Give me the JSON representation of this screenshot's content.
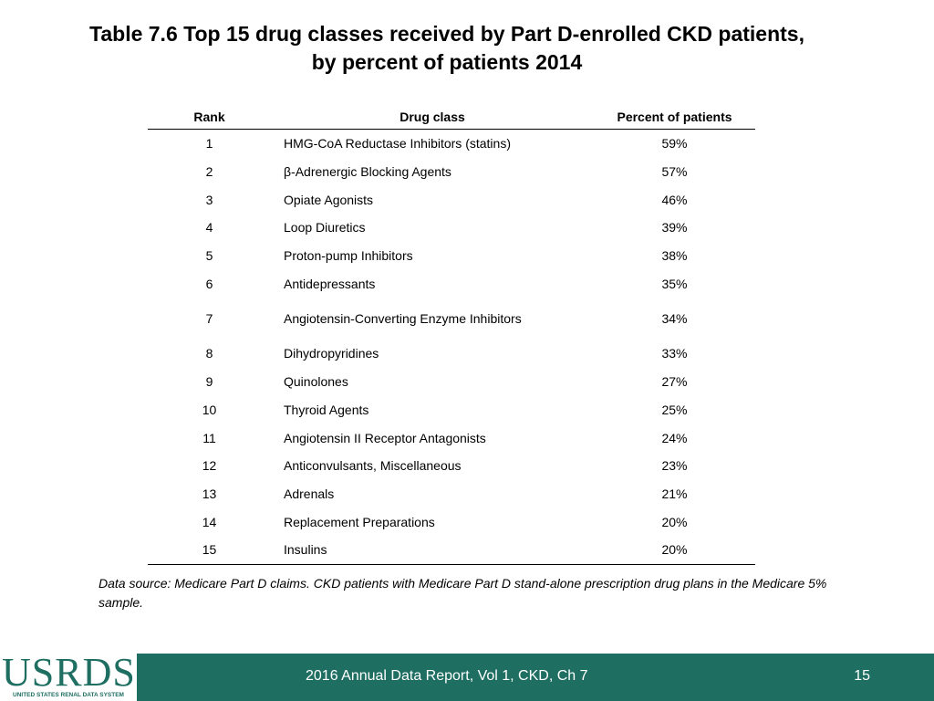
{
  "title": {
    "line1": "Table 7.6  Top 15 drug classes received by Part D-enrolled CKD patients,",
    "line2": "by percent of patients 2014"
  },
  "table": {
    "headers": [
      "Rank",
      "Drug class",
      "Percent of patients"
    ],
    "rows": [
      {
        "rank": "1",
        "drug_class": "HMG-CoA Reductase Inhibitors (statins)",
        "percent": "59%"
      },
      {
        "rank": "2",
        "drug_class": "β-Adrenergic Blocking Agents",
        "percent": "57%"
      },
      {
        "rank": "3",
        "drug_class": "Opiate Agonists",
        "percent": "46%"
      },
      {
        "rank": "4",
        "drug_class": "Loop Diuretics",
        "percent": "39%"
      },
      {
        "rank": "5",
        "drug_class": "Proton-pump Inhibitors",
        "percent": "38%"
      },
      {
        "rank": "6",
        "drug_class": "Antidepressants",
        "percent": "35%"
      },
      {
        "rank": "7",
        "drug_class": "Angiotensin-Converting Enzyme Inhibitors",
        "percent": "34%"
      },
      {
        "rank": "8",
        "drug_class": "Dihydropyridines",
        "percent": "33%"
      },
      {
        "rank": "9",
        "drug_class": "Quinolones",
        "percent": "27%"
      },
      {
        "rank": "10",
        "drug_class": "Thyroid Agents",
        "percent": "25%"
      },
      {
        "rank": "11",
        "drug_class": "Angiotensin II Receptor Antagonists",
        "percent": "24%"
      },
      {
        "rank": "12",
        "drug_class": "Anticonvulsants, Miscellaneous",
        "percent": "23%"
      },
      {
        "rank": "13",
        "drug_class": "Adrenals",
        "percent": "21%"
      },
      {
        "rank": "14",
        "drug_class": "Replacement Preparations",
        "percent": "20%"
      },
      {
        "rank": "15",
        "drug_class": "Insulins",
        "percent": "20%"
      }
    ]
  },
  "source_note": "Data source: Medicare Part D claims. CKD patients with Medicare Part D stand-alone prescription drug plans in the Medicare 5% sample.",
  "footer": {
    "logo_text": "USRDS",
    "logo_subtitle": "UNITED STATES RENAL DATA SYSTEM",
    "report_label": "2016 Annual Data Report, Vol 1, CKD, Ch 7",
    "page_number": "15",
    "bar_color": "#1e6e62"
  }
}
